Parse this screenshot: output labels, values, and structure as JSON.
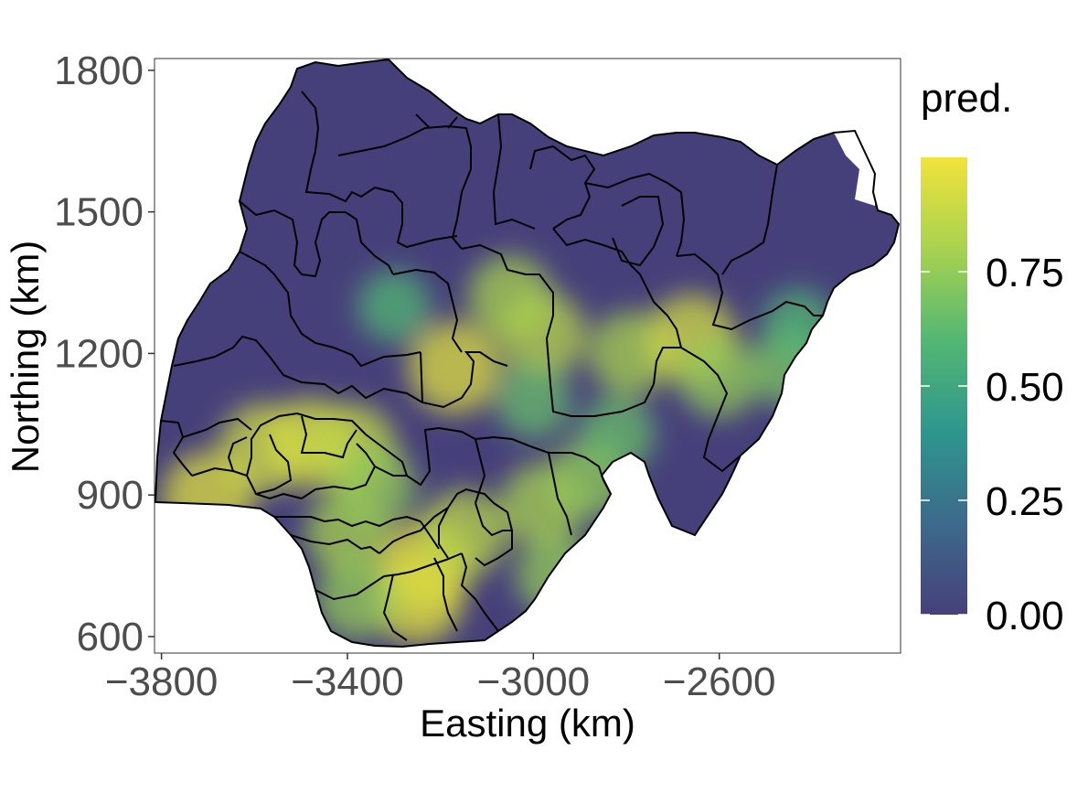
{
  "chart_data": {
    "type": "heatmap",
    "title": "",
    "xlabel": "Easting (km)",
    "ylabel": "Northing (km)",
    "xlim": [
      -3815,
      -2210
    ],
    "ylim": [
      565,
      1825
    ],
    "x_ticks": [
      -3800,
      -3400,
      -3000,
      -2600
    ],
    "x_tick_labels": [
      "−3800",
      "−3400",
      "−3000",
      "−2600"
    ],
    "y_ticks": [
      600,
      900,
      1200,
      1500,
      1800
    ],
    "y_tick_labels": [
      "600",
      "900",
      "1200",
      "1500",
      "1800"
    ],
    "grid": false,
    "colorscale": "viridis",
    "legend": {
      "title": "pred.",
      "position": "right",
      "range": [
        0,
        1
      ],
      "ticks": [
        0.0,
        0.25,
        0.5,
        0.75
      ],
      "tick_labels": [
        "0.00",
        "0.25",
        "0.50",
        "0.75"
      ],
      "colors": [
        "#46407a",
        "#3d6a8c",
        "#2e968d",
        "#53b774",
        "#a8d24f",
        "#f1e33b"
      ]
    },
    "hotspots": [
      {
        "x": -3700,
        "y": 895,
        "value": 0.95
      },
      {
        "x": -3580,
        "y": 1000,
        "value": 0.9
      },
      {
        "x": -3480,
        "y": 1010,
        "value": 0.92
      },
      {
        "x": -3390,
        "y": 1000,
        "value": 0.88
      },
      {
        "x": -3230,
        "y": 750,
        "value": 0.97
      },
      {
        "x": -3250,
        "y": 680,
        "value": 0.95
      },
      {
        "x": -3150,
        "y": 820,
        "value": 0.85
      },
      {
        "x": -2980,
        "y": 1240,
        "value": 0.85
      },
      {
        "x": -3050,
        "y": 1320,
        "value": 0.8
      },
      {
        "x": -2790,
        "y": 1200,
        "value": 0.8
      },
      {
        "x": -2660,
        "y": 1230,
        "value": 0.92
      },
      {
        "x": -2980,
        "y": 880,
        "value": 0.8
      },
      {
        "x": -2880,
        "y": 935,
        "value": 0.75
      },
      {
        "x": -3170,
        "y": 1170,
        "value": 0.95
      },
      {
        "x": -3300,
        "y": 1300,
        "value": 0.6
      },
      {
        "x": -2600,
        "y": 1150,
        "value": 0.75
      },
      {
        "x": -2450,
        "y": 1170,
        "value": 0.7
      },
      {
        "x": -3000,
        "y": 1100,
        "value": 0.65
      },
      {
        "x": -3400,
        "y": 820,
        "value": 0.8
      },
      {
        "x": -3340,
        "y": 920,
        "value": 0.75
      },
      {
        "x": -3380,
        "y": 680,
        "value": 0.75
      },
      {
        "x": -2950,
        "y": 730,
        "value": 0.75
      },
      {
        "x": -2430,
        "y": 1260,
        "value": 0.6
      },
      {
        "x": -2820,
        "y": 1030,
        "value": 0.65
      }
    ]
  }
}
